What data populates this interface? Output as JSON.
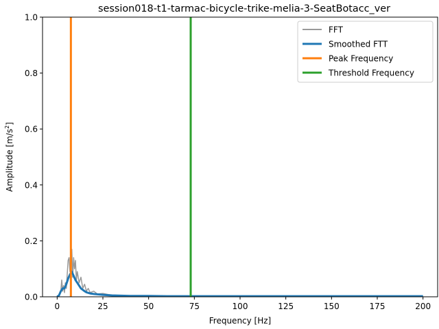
{
  "chart_data": {
    "type": "line",
    "title": "session018-t1-tarmac-bicycle-trike-melia-3-SeatBotacc_ver",
    "xlabel": "Frequency [Hz]",
    "ylabel_prefix": "Amplitude [m/s",
    "ylabel_sup": "2",
    "ylabel_suffix": "]",
    "xlim": [
      -8,
      208
    ],
    "ylim": [
      0,
      1.0
    ],
    "x_ticks": [
      0,
      25,
      50,
      75,
      100,
      125,
      150,
      175,
      200
    ],
    "x_tick_labels": [
      "0",
      "25",
      "50",
      "75",
      "100",
      "125",
      "150",
      "175",
      "200"
    ],
    "y_ticks": [
      0,
      0.2,
      0.4,
      0.6,
      0.8,
      1.0
    ],
    "y_tick_labels": [
      "0.0",
      "0.2",
      "0.4",
      "0.6",
      "0.8",
      "1.0"
    ],
    "grid": false,
    "legend_position": "top-right",
    "legend": [
      "FFT",
      "Smoothed FTT",
      "Peak Frequency",
      "Threshold Frequency"
    ],
    "colors": {
      "fft": "#999999",
      "smoothed": "#1f77b4",
      "peak": "#ff7f0e",
      "threshold": "#2ca02c"
    },
    "series": [
      {
        "name": "FFT",
        "x": [
          0,
          1,
          2,
          2.5,
          3,
          3.5,
          4,
          4.5,
          5,
          5.5,
          6,
          6.5,
          7,
          7.5,
          8,
          8.5,
          9,
          9.5,
          10,
          10.5,
          11,
          12,
          13,
          14,
          15,
          16,
          17,
          18,
          20,
          22,
          25,
          28,
          30,
          35,
          40,
          45,
          50,
          60,
          70,
          80,
          90,
          100,
          110,
          120,
          130,
          140,
          150,
          160,
          170,
          180,
          190,
          200
        ],
        "y": [
          0.0,
          0.005,
          0.02,
          0.06,
          0.02,
          0.04,
          0.015,
          0.05,
          0.03,
          0.08,
          0.13,
          0.14,
          0.09,
          0.12,
          0.17,
          0.07,
          0.14,
          0.1,
          0.13,
          0.06,
          0.09,
          0.05,
          0.07,
          0.03,
          0.045,
          0.02,
          0.03,
          0.015,
          0.02,
          0.01,
          0.012,
          0.008,
          0.006,
          0.005,
          0.004,
          0.004,
          0.003,
          0.003,
          0.002,
          0.002,
          0.002,
          0.002,
          0.002,
          0.002,
          0.002,
          0.002,
          0.002,
          0.002,
          0.002,
          0.002,
          0.002,
          0.002
        ]
      },
      {
        "name": "Smoothed FTT",
        "x": [
          0,
          1,
          2,
          3,
          4,
          5,
          6,
          7,
          8,
          9,
          10,
          11,
          12,
          13,
          14,
          15,
          16,
          18,
          20,
          25,
          30,
          35,
          40,
          50,
          60,
          75,
          100,
          125,
          150,
          175,
          200
        ],
        "y": [
          0.0,
          0.005,
          0.02,
          0.03,
          0.03,
          0.045,
          0.065,
          0.08,
          0.09,
          0.075,
          0.06,
          0.05,
          0.04,
          0.03,
          0.025,
          0.02,
          0.016,
          0.012,
          0.01,
          0.007,
          0.005,
          0.004,
          0.003,
          0.003,
          0.002,
          0.002,
          0.002,
          0.002,
          0.002,
          0.002,
          0.002
        ]
      }
    ],
    "vlines": [
      {
        "name": "Peak Frequency",
        "x": 7.5
      },
      {
        "name": "Threshold Frequency",
        "x": 73
      }
    ]
  }
}
